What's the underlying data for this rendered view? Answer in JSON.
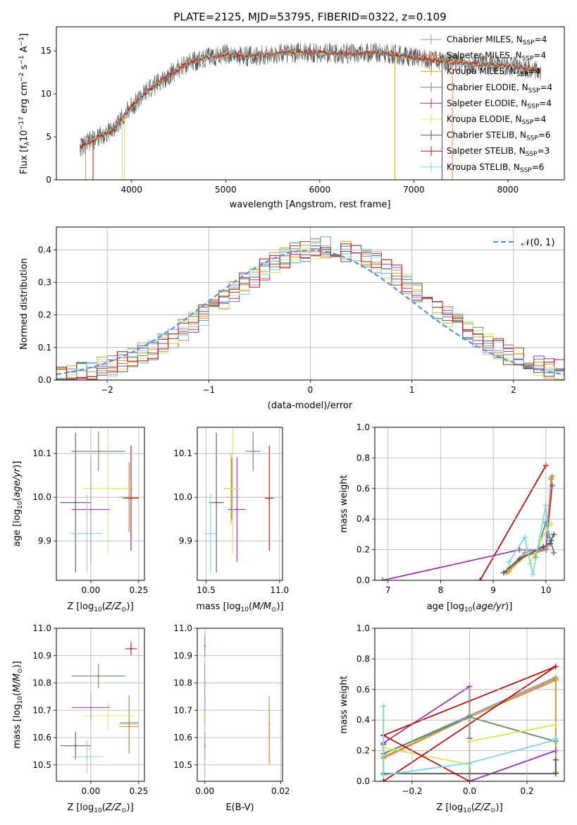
{
  "title": "PLATE=2125, MJD=53795, FIBERID=0322, z=0.109",
  "legend": [
    {
      "name": "Chabrier MILES, N",
      "sub": "SSP",
      "tail": "=4",
      "color": "#7f98c8"
    },
    {
      "name": "Salpeter MILES, N",
      "sub": "SSP",
      "tail": "=4",
      "color": "#ef7f4f"
    },
    {
      "name": "Kroupa MILES, N",
      "sub": "SSP",
      "tail": "=4",
      "color": "#c8a42a"
    },
    {
      "name": "Chabrier ELODIE, N",
      "sub": "SSP",
      "tail": "=4",
      "color": "#5e8a62"
    },
    {
      "name": "Salpeter ELODIE, N",
      "sub": "SSP",
      "tail": "=4",
      "color": "#9933b0"
    },
    {
      "name": "Kroupa ELODIE, N",
      "sub": "SSP",
      "tail": "=4",
      "color": "#d4e85a"
    },
    {
      "name": "Chabrier STELIB, N",
      "sub": "SSP",
      "tail": "=6",
      "color": "#555555"
    },
    {
      "name": "Salpeter STELIB, N",
      "sub": "SSP",
      "tail": "=3",
      "color": "#b01111"
    },
    {
      "name": "Kroupa STELIB, N",
      "sub": "SSP",
      "tail": "=6",
      "color": "#7fd6dc"
    }
  ],
  "chart_data": [
    {
      "type": "line",
      "title": "PLATE=2125, MJD=53795, FIBERID=0322, z=0.109",
      "xlabel": "wavelength [Angstrom, rest frame]",
      "ylabel": "Flux [fλ10−17 erg cm−2 s−1 A−1]",
      "xlim": [
        3200,
        8600
      ],
      "ylim": [
        0,
        17.8
      ],
      "xticks": [
        "4000",
        "5000",
        "6000",
        "7000",
        "8000"
      ],
      "yticks": [
        "0",
        "5",
        "10",
        "15"
      ],
      "grid": false,
      "legend_position": "right",
      "continuum_x": [
        3450,
        3600,
        3800,
        4000,
        4200,
        4400,
        4600,
        4800,
        5000,
        5200,
        5400,
        5600,
        5800,
        6000,
        6200,
        6400,
        6600,
        6800,
        7000,
        7200,
        7400,
        7600,
        7800,
        8000,
        8200,
        8350
      ],
      "continuum_y": [
        3.8,
        4.7,
        5.8,
        8.6,
        10.6,
        12.2,
        13.6,
        14.2,
        14.6,
        14.4,
        14.5,
        14.7,
        14.8,
        14.8,
        14.7,
        14.7,
        14.8,
        14.6,
        14.2,
        13.9,
        13.8,
        13.5,
        13.4,
        13.3,
        13.0,
        12.7
      ]
    },
    {
      "type": "histogram",
      "xlabel": "(data-model)/error",
      "ylabel": "Normed distribution",
      "xlim": [
        -2.5,
        2.5
      ],
      "ylim": [
        0,
        0.47
      ],
      "xticks": [
        "−2",
        "−1",
        "0",
        "1",
        "2"
      ],
      "yticks": [
        "0.0",
        "0.1",
        "0.2",
        "0.3",
        "0.4"
      ],
      "grid": true,
      "legend": "𝒩(0, 1)",
      "legend_position": "top-right",
      "bin_width": 0.1
    },
    {
      "type": "scatter",
      "xlabel": "Z [log10(Z/Z⊙)]",
      "ylabel": "age  [log10(age/yr)]",
      "xlim": [
        -0.18,
        0.28
      ],
      "ylim": [
        9.81,
        10.16
      ],
      "xticks": [
        "0.00",
        "0.25"
      ],
      "yticks": [
        "9.9",
        "10.0",
        "10.1"
      ],
      "grid": true,
      "points": [
        {
          "x": 0.2,
          "y": 10.0,
          "xerr": 0.05,
          "yerr": 0.08,
          "series": "Chabrier MILES"
        },
        {
          "x": 0.2,
          "y": 10.0,
          "xerr": 0.05,
          "yerr": 0.08,
          "series": "Salpeter MILES"
        },
        {
          "x": 0.2,
          "y": 10.0,
          "xerr": 0.05,
          "yerr": 0.08,
          "series": "Kroupa MILES"
        },
        {
          "x": 0.04,
          "y": 10.105,
          "xerr": 0.14,
          "yerr": 0.045,
          "series": "Chabrier ELODIE"
        },
        {
          "x": 0.0,
          "y": 9.972,
          "xerr": 0.1,
          "yerr": 0.12,
          "series": "Salpeter ELODIE"
        },
        {
          "x": 0.09,
          "y": 10.02,
          "xerr": 0.13,
          "yerr": 0.15,
          "series": "Kroupa ELODIE"
        },
        {
          "x": -0.08,
          "y": 9.988,
          "xerr": 0.08,
          "yerr": 0.16,
          "series": "Chabrier STELIB"
        },
        {
          "x": 0.21,
          "y": 9.998,
          "xerr": 0.04,
          "yerr": 0.12,
          "series": "Salpeter STELIB"
        },
        {
          "x": -0.02,
          "y": 9.917,
          "xerr": 0.08,
          "yerr": 0.09,
          "series": "Kroupa STELIB"
        }
      ]
    },
    {
      "type": "scatter",
      "xlabel": "mass [log10(M/M⊙)]",
      "ylabel": "",
      "xlim": [
        10.44,
        11.02
      ],
      "ylim": [
        9.81,
        10.16
      ],
      "xticks": [
        "10.5",
        "11.0"
      ],
      "yticks": [
        "9.9",
        "10.0",
        "10.1"
      ],
      "grid": true,
      "points": [
        {
          "x": 10.675,
          "y": 10.02,
          "xerr": 0.04,
          "yerr": 0.07,
          "series": "Chabrier MILES"
        },
        {
          "x": 10.68,
          "y": 10.0,
          "xerr": 0.05,
          "yerr": 0.08,
          "series": "Salpeter MILES"
        },
        {
          "x": 10.67,
          "y": 10.02,
          "xerr": 0.05,
          "yerr": 0.08,
          "series": "Kroupa MILES"
        },
        {
          "x": 10.82,
          "y": 10.105,
          "xerr": 0.05,
          "yerr": 0.045,
          "series": "Chabrier ELODIE"
        },
        {
          "x": 10.71,
          "y": 9.972,
          "xerr": 0.06,
          "yerr": 0.12,
          "series": "Salpeter ELODIE"
        },
        {
          "x": 10.68,
          "y": 10.02,
          "xerr": 0.05,
          "yerr": 0.15,
          "series": "Kroupa ELODIE"
        },
        {
          "x": 10.57,
          "y": 9.988,
          "xerr": 0.05,
          "yerr": 0.16,
          "series": "Chabrier STELIB"
        },
        {
          "x": 10.93,
          "y": 9.998,
          "xerr": 0.03,
          "yerr": 0.12,
          "series": "Salpeter STELIB"
        },
        {
          "x": 10.53,
          "y": 9.917,
          "xerr": 0.04,
          "yerr": 0.09,
          "series": "Kroupa STELIB"
        }
      ]
    },
    {
      "type": "line",
      "xlabel": "age  [log10(age/yr)]",
      "ylabel": "mass weight",
      "xlim": [
        6.75,
        10.35
      ],
      "ylim": [
        0,
        1
      ],
      "xticks": [
        "7",
        "8",
        "9",
        "10"
      ],
      "yticks": [
        "0.0",
        "0.2",
        "0.4",
        "0.6",
        "0.8",
        "1.0"
      ],
      "grid": true,
      "series": [
        {
          "name": "Chabrier MILES",
          "x": [
            9.3,
            9.6,
            10.0,
            10.12
          ],
          "y": [
            0.08,
            0.18,
            0.22,
            0.68
          ]
        },
        {
          "name": "Salpeter MILES",
          "x": [
            9.25,
            9.55,
            10.0,
            10.1
          ],
          "y": [
            0.05,
            0.15,
            0.2,
            0.66
          ]
        },
        {
          "name": "Kroupa MILES",
          "x": [
            9.3,
            9.6,
            10.0,
            10.1
          ],
          "y": [
            0.06,
            0.16,
            0.21,
            0.67
          ]
        },
        {
          "name": "Chabrier ELODIE",
          "x": [
            9.8,
            10.0,
            10.15
          ],
          "y": [
            0.15,
            0.38,
            0.18
          ]
        },
        {
          "name": "Salpeter ELODIE",
          "x": [
            6.9,
            9.5,
            10.0,
            10.12
          ],
          "y": [
            0.0,
            0.2,
            0.2,
            0.62
          ]
        },
        {
          "name": "Kroupa ELODIE",
          "x": [
            9.7,
            9.9,
            10.1
          ],
          "y": [
            0.11,
            0.26,
            0.37
          ]
        },
        {
          "name": "Chabrier STELIB",
          "x": [
            9.2,
            9.5,
            9.95,
            10.08,
            10.1,
            10.15
          ],
          "y": [
            0.05,
            0.14,
            0.22,
            0.24,
            0.26,
            0.3
          ]
        },
        {
          "name": "Salpeter STELIB",
          "x": [
            8.75,
            10.0
          ],
          "y": [
            0.0,
            0.75
          ]
        },
        {
          "name": "Kroupa STELIB",
          "x": [
            9.3,
            9.6,
            9.75,
            10.0,
            10.05
          ],
          "y": [
            0.12,
            0.28,
            0.04,
            0.49,
            0.27
          ]
        }
      ]
    },
    {
      "type": "scatter",
      "xlabel": "Z [log10(Z/Z⊙)]",
      "ylabel": "mass [log10(M/M⊙)]",
      "xlim": [
        -0.18,
        0.28
      ],
      "ylim": [
        10.44,
        11.0
      ],
      "xticks": [
        "0.00",
        "0.25"
      ],
      "yticks": [
        "10.5",
        "10.6",
        "10.7",
        "10.8",
        "10.9",
        "11.0"
      ],
      "grid": true,
      "points": [
        {
          "x": 0.2,
          "y": 10.655,
          "xerr": 0.05,
          "yerr": 0.1,
          "series": "Chabrier MILES"
        },
        {
          "x": 0.2,
          "y": 10.64,
          "xerr": 0.05,
          "yerr": 0.1,
          "series": "Salpeter MILES"
        },
        {
          "x": 0.2,
          "y": 10.65,
          "xerr": 0.05,
          "yerr": 0.1,
          "series": "Kroupa MILES"
        },
        {
          "x": 0.04,
          "y": 10.825,
          "xerr": 0.14,
          "yerr": 0.045,
          "series": "Chabrier ELODIE"
        },
        {
          "x": 0.0,
          "y": 10.71,
          "xerr": 0.1,
          "yerr": 0.05,
          "series": "Salpeter ELODIE"
        },
        {
          "x": 0.09,
          "y": 10.68,
          "xerr": 0.13,
          "yerr": 0.05,
          "series": "Kroupa ELODIE"
        },
        {
          "x": -0.08,
          "y": 10.57,
          "xerr": 0.08,
          "yerr": 0.05,
          "series": "Chabrier STELIB"
        },
        {
          "x": 0.21,
          "y": 10.925,
          "xerr": 0.03,
          "yerr": 0.025,
          "series": "Salpeter STELIB"
        },
        {
          "x": -0.02,
          "y": 10.53,
          "xerr": 0.08,
          "yerr": 0.06,
          "series": "Kroupa STELIB"
        }
      ]
    },
    {
      "type": "scatter",
      "xlabel": "E(B-V)",
      "ylabel": "",
      "xlim": [
        -0.002,
        0.0205
      ],
      "ylim": [
        10.44,
        11.0
      ],
      "xticks": [
        "0.00",
        "0.02"
      ],
      "yticks": [
        "10.5",
        "10.6",
        "10.7",
        "10.8",
        "10.9",
        "11.0"
      ],
      "grid": true,
      "points": [
        {
          "x": 0.017,
          "y": 10.65,
          "xerr": 0,
          "yerr": 0.1,
          "series": "Chabrier MILES"
        },
        {
          "x": 0.017,
          "y": 10.6,
          "xerr": 0,
          "yerr": 0.1,
          "series": "Salpeter MILES"
        },
        {
          "x": 0.017,
          "y": 10.62,
          "xerr": 0,
          "yerr": 0.1,
          "series": "Kroupa MILES"
        },
        {
          "x": 0.0,
          "y": 10.8,
          "xerr": 0,
          "yerr": 0.07,
          "series": "Chabrier ELODIE"
        },
        {
          "x": 0.0,
          "y": 10.7,
          "xerr": 0,
          "yerr": 0.05,
          "series": "Salpeter ELODIE"
        },
        {
          "x": 0.0,
          "y": 10.68,
          "xerr": 0,
          "yerr": 0.05,
          "series": "Kroupa ELODIE"
        },
        {
          "x": 0.0,
          "y": 10.57,
          "xerr": 0,
          "yerr": 0.05,
          "series": "Chabrier STELIB"
        },
        {
          "x": 0.0,
          "y": 10.935,
          "xerr": 0,
          "yerr": 0.04,
          "series": "Salpeter STELIB"
        },
        {
          "x": 0.0,
          "y": 10.53,
          "xerr": 0,
          "yerr": 0.07,
          "series": "Kroupa STELIB"
        }
      ]
    },
    {
      "type": "line",
      "xlabel": "Z [log10(Z/Z⊙)]",
      "ylabel": "mass weight",
      "xlim": [
        -0.33,
        0.33
      ],
      "ylim": [
        0,
        1
      ],
      "xticks": [
        "−0.2",
        "0.0",
        "0.2"
      ],
      "yticks": [
        "0.0",
        "0.2",
        "0.4",
        "0.6",
        "0.8",
        "1.0"
      ],
      "grid": true,
      "series": [
        {
          "name": "Chabrier MILES",
          "x": [
            -0.3,
            0.0,
            0.3,
            0.3
          ],
          "y": [
            0.18,
            0.43,
            0.68,
            0.05
          ]
        },
        {
          "name": "Salpeter MILES",
          "x": [
            -0.3,
            0.0,
            0.3,
            0.3
          ],
          "y": [
            0.15,
            0.42,
            0.66,
            0.05
          ]
        },
        {
          "name": "Kroupa MILES",
          "x": [
            -0.3,
            0.0,
            0.3,
            0.3
          ],
          "y": [
            0.16,
            0.42,
            0.67,
            0.06
          ]
        },
        {
          "name": "Chabrier ELODIE",
          "x": [
            -0.3,
            0.0,
            0.3
          ],
          "y": [
            0.18,
            0.42,
            0.26
          ]
        },
        {
          "name": "Salpeter ELODIE",
          "x": [
            -0.3,
            0.0,
            0.0,
            0.0,
            0.3
          ],
          "y": [
            0.25,
            0.62,
            0.28,
            0.0,
            0.2
          ]
        },
        {
          "name": "Kroupa ELODIE",
          "x": [
            -0.3,
            0.0,
            0.0,
            0.0,
            0.3
          ],
          "y": [
            0.22,
            0.11,
            0.26,
            0.26,
            0.37
          ]
        },
        {
          "name": "Chabrier STELIB",
          "x": [
            -0.3,
            -0.3,
            0.0,
            0.3,
            0.3
          ],
          "y": [
            0.24,
            0.05,
            0.05,
            0.05,
            0.14
          ]
        },
        {
          "name": "Salpeter STELIB",
          "x": [
            -0.3,
            0.3,
            -0.3,
            0.0
          ],
          "y": [
            0.0,
            0.75,
            0.3,
            0.0
          ]
        },
        {
          "name": "Kroupa STELIB",
          "x": [
            -0.3,
            -0.3,
            0.0,
            0.3,
            0.3
          ],
          "y": [
            0.49,
            0.04,
            0.12,
            0.27,
            0.28
          ]
        }
      ]
    }
  ]
}
